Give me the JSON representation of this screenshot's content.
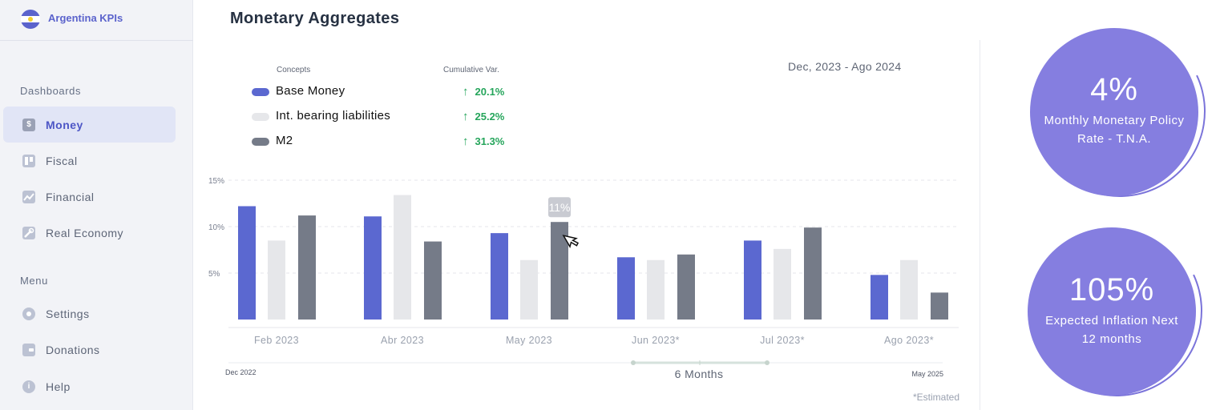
{
  "brand": {
    "name": "Argentina KPIs"
  },
  "sidebar": {
    "dashboards_label": "Dashboards",
    "menu_label": "Menu",
    "dashboard_items": [
      {
        "label": "Money",
        "icon": "dollar-icon",
        "active": true
      },
      {
        "label": "Fiscal",
        "icon": "board-icon",
        "active": false
      },
      {
        "label": "Financial",
        "icon": "trend-icon",
        "active": false
      },
      {
        "label": "Real Economy",
        "icon": "wrench-icon",
        "active": false
      }
    ],
    "menu_items": [
      {
        "label": "Settings",
        "icon": "gear-icon"
      },
      {
        "label": "Donations",
        "icon": "wallet-icon"
      },
      {
        "label": "Help",
        "icon": "info-icon"
      }
    ]
  },
  "main": {
    "title": "Monetary Aggregates",
    "legend": {
      "concepts_header": "Concepts",
      "variation_header": "Cumulative Var.",
      "items": [
        {
          "name": "Base Money",
          "variation": "20.1%",
          "color": "#5b68d0"
        },
        {
          "name": "Int. bearing liabilities",
          "variation": "25.2%",
          "color": "#e6e7ea"
        },
        {
          "name": "M2",
          "variation": "31.3%",
          "color": "#757b88"
        }
      ]
    },
    "date_range": "Dec, 2023 - Ago 2024",
    "tooltip": "11%",
    "range_slider": {
      "start": "Dec 2022",
      "end": "May 2025",
      "window": "6 Months"
    },
    "footnote": "*Estimated"
  },
  "chart_data": {
    "type": "bar",
    "title": "Monetary Aggregates",
    "categories": [
      "Feb 2023",
      "Abr 2023",
      "May 2023",
      "Jun 2023*",
      "Jul 2023*",
      "Ago 2023*"
    ],
    "series": [
      {
        "name": "Base Money",
        "color": "#5b68d0",
        "values": [
          12.2,
          11.1,
          9.3,
          6.7,
          8.5,
          4.8
        ]
      },
      {
        "name": "Int. bearing liabilities",
        "color": "#e6e7ea",
        "values": [
          8.5,
          13.4,
          6.4,
          6.4,
          7.6,
          6.4
        ]
      },
      {
        "name": "M2",
        "color": "#757b88",
        "values": [
          11.2,
          8.4,
          10.5,
          7.0,
          9.9,
          2.9
        ]
      }
    ],
    "yticks": [
      "15%",
      "10%",
      "5%"
    ],
    "ytick_values": [
      15,
      10,
      5
    ],
    "ylim": [
      0,
      15
    ],
    "grid": true
  },
  "kpis": [
    {
      "value": "4%",
      "label": "Monthly Monetary Policy Rate - T.N.A."
    },
    {
      "value": "105%",
      "label": "Expected Inflation Next 12 months"
    }
  ]
}
